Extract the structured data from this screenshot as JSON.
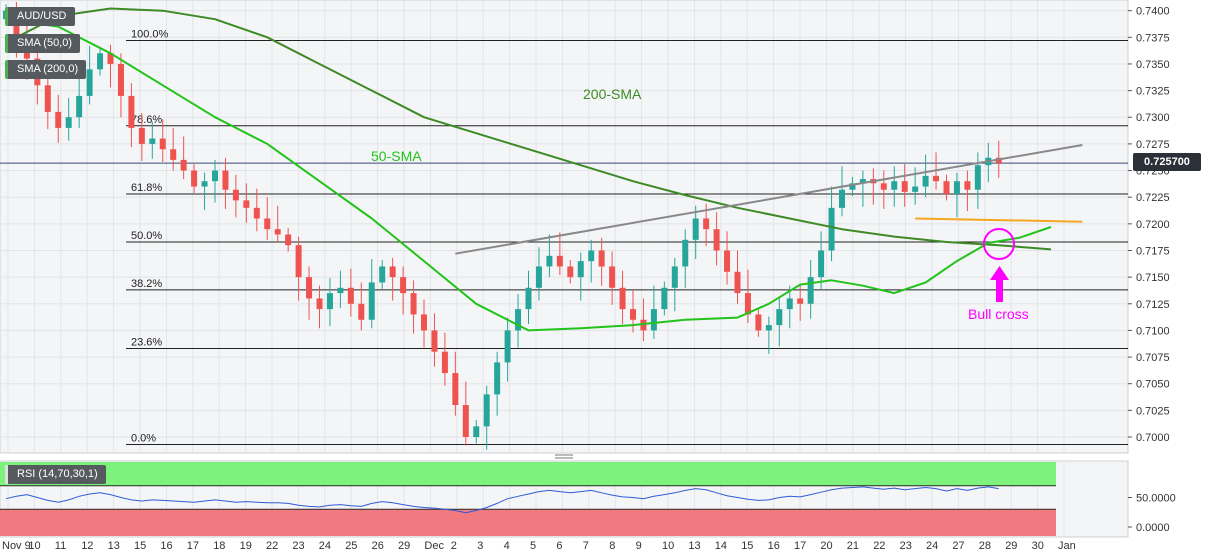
{
  "symbol": "AUD/USD",
  "indicators": [
    "SMA (50,0)",
    "SMA (200,0)"
  ],
  "rsi_label": "RSI (14,70,30,1)",
  "current_price_label": "0.725700",
  "colors": {
    "up_candle": "#26a69a",
    "down_candle": "#ef5350",
    "sma50": "#22c31a",
    "sma200": "#3d8b24",
    "trendline": "#888888",
    "support": "#f5a623",
    "annotation": "#ff00ff",
    "rsi_line": "#2f5bd8",
    "rsi_overbought": "#7df27d",
    "rsi_oversold": "#f07a80"
  },
  "annotations": {
    "sma200_label": "200-SMA",
    "sma50_label": "50-SMA",
    "bull_cross_label": "Bull cross"
  },
  "chart_data": {
    "type": "candlestick",
    "instrument": "AUD/USD",
    "ylim": [
      0.6985,
      0.741
    ],
    "y_ticks": [
      "0.7400",
      "0.7375",
      "0.7350",
      "0.7325",
      "0.7300",
      "0.7275",
      "0.7250",
      "0.7225",
      "0.7200",
      "0.7175",
      "0.7150",
      "0.7125",
      "0.7100",
      "0.7075",
      "0.7050",
      "0.7025",
      "0.7000"
    ],
    "x_ticks": [
      "Nov 9",
      "10",
      "11",
      "12",
      "13",
      "15",
      "16",
      "17",
      "18",
      "19",
      "22",
      "23",
      "24",
      "25",
      "26",
      "29",
      "Dec",
      "2",
      "3",
      "4",
      "5",
      "6",
      "7",
      "8",
      "9",
      "10",
      "13",
      "14",
      "15",
      "16",
      "17",
      "20",
      "21",
      "22",
      "23",
      "24",
      "27",
      "28",
      "29",
      "30",
      "Jan"
    ],
    "fibonacci": [
      {
        "label": "100.0%",
        "price": 0.7372
      },
      {
        "label": "78.6%",
        "price": 0.7292
      },
      {
        "label": "61.8%",
        "price": 0.7228
      },
      {
        "label": "50.0%",
        "price": 0.7183
      },
      {
        "label": "38.2%",
        "price": 0.7138
      },
      {
        "label": "23.6%",
        "price": 0.7083
      },
      {
        "label": "0.0%",
        "price": 0.6993
      }
    ],
    "current_price": 0.7257,
    "closes": [
      0.74,
      0.7378,
      0.7355,
      0.733,
      0.7305,
      0.729,
      0.73,
      0.732,
      0.7345,
      0.736,
      0.735,
      0.732,
      0.729,
      0.7275,
      0.728,
      0.727,
      0.726,
      0.725,
      0.7235,
      0.724,
      0.725,
      0.7232,
      0.7222,
      0.7215,
      0.7205,
      0.7195,
      0.719,
      0.718,
      0.715,
      0.713,
      0.712,
      0.7135,
      0.714,
      0.7125,
      0.711,
      0.7145,
      0.716,
      0.715,
      0.7135,
      0.7115,
      0.71,
      0.708,
      0.706,
      0.703,
      0.7,
      0.701,
      0.704,
      0.707,
      0.71,
      0.712,
      0.714,
      0.716,
      0.717,
      0.716,
      0.715,
      0.7165,
      0.7175,
      0.716,
      0.714,
      0.712,
      0.711,
      0.71,
      0.712,
      0.714,
      0.716,
      0.7185,
      0.7205,
      0.7195,
      0.7175,
      0.7155,
      0.7135,
      0.7115,
      0.71,
      0.7105,
      0.712,
      0.713,
      0.7125,
      0.715,
      0.7175,
      0.7215,
      0.7232,
      0.7238,
      0.7242,
      0.7238,
      0.7232,
      0.724,
      0.723,
      0.7235,
      0.7245,
      0.724,
      0.7228,
      0.724,
      0.7232,
      0.7255,
      0.7262,
      0.7257
    ],
    "sma50": [
      {
        "i": 0,
        "v": 0.7392
      },
      {
        "i": 5,
        "v": 0.7385
      },
      {
        "i": 10,
        "v": 0.736
      },
      {
        "i": 15,
        "v": 0.733
      },
      {
        "i": 20,
        "v": 0.73
      },
      {
        "i": 25,
        "v": 0.7275
      },
      {
        "i": 30,
        "v": 0.724
      },
      {
        "i": 35,
        "v": 0.7205
      },
      {
        "i": 40,
        "v": 0.7165
      },
      {
        "i": 45,
        "v": 0.7125
      },
      {
        "i": 50,
        "v": 0.71
      },
      {
        "i": 55,
        "v": 0.7102
      },
      {
        "i": 60,
        "v": 0.7105
      },
      {
        "i": 65,
        "v": 0.711
      },
      {
        "i": 70,
        "v": 0.7112
      },
      {
        "i": 73,
        "v": 0.7125
      },
      {
        "i": 76,
        "v": 0.7143
      },
      {
        "i": 79,
        "v": 0.7147
      },
      {
        "i": 82,
        "v": 0.7142
      },
      {
        "i": 85,
        "v": 0.7135
      },
      {
        "i": 88,
        "v": 0.7145
      },
      {
        "i": 91,
        "v": 0.7165
      },
      {
        "i": 94,
        "v": 0.7182
      },
      {
        "i": 97,
        "v": 0.7187
      },
      {
        "i": 100,
        "v": 0.7197
      }
    ],
    "sma200": [
      {
        "i": 0,
        "v": 0.737
      },
      {
        "i": 5,
        "v": 0.7395
      },
      {
        "i": 10,
        "v": 0.7402
      },
      {
        "i": 15,
        "v": 0.74
      },
      {
        "i": 20,
        "v": 0.7392
      },
      {
        "i": 25,
        "v": 0.7375
      },
      {
        "i": 30,
        "v": 0.735
      },
      {
        "i": 35,
        "v": 0.7325
      },
      {
        "i": 40,
        "v": 0.73
      },
      {
        "i": 45,
        "v": 0.7285
      },
      {
        "i": 50,
        "v": 0.727
      },
      {
        "i": 55,
        "v": 0.7255
      },
      {
        "i": 60,
        "v": 0.724
      },
      {
        "i": 65,
        "v": 0.7227
      },
      {
        "i": 70,
        "v": 0.7215
      },
      {
        "i": 75,
        "v": 0.7205
      },
      {
        "i": 80,
        "v": 0.7195
      },
      {
        "i": 85,
        "v": 0.7188
      },
      {
        "i": 90,
        "v": 0.7183
      },
      {
        "i": 95,
        "v": 0.718
      },
      {
        "i": 100,
        "v": 0.7176
      }
    ],
    "trendline": {
      "from": {
        "i": 43,
        "v": 0.7172
      },
      "to": {
        "i": 103,
        "v": 0.7274
      }
    },
    "support_line": {
      "from": {
        "i": 87,
        "v": 0.7205
      },
      "to": {
        "i": 103,
        "v": 0.7202
      }
    },
    "rsi": {
      "label": "RSI (14,70,30,1)",
      "ylim": [
        0,
        100
      ],
      "ticks": [
        "50.0000",
        "0.0000"
      ],
      "levels": [
        70,
        30
      ],
      "values": [
        48,
        52,
        55,
        50,
        45,
        42,
        46,
        52,
        56,
        58,
        55,
        50,
        46,
        44,
        46,
        45,
        44,
        43,
        42,
        44,
        46,
        44,
        42,
        43,
        42,
        41,
        41,
        40,
        37,
        35,
        34,
        37,
        38,
        36,
        35,
        40,
        43,
        41,
        38,
        35,
        33,
        32,
        30,
        28,
        24,
        28,
        33,
        40,
        48,
        52,
        56,
        60,
        62,
        60,
        58,
        60,
        62,
        58,
        54,
        51,
        50,
        48,
        52,
        55,
        58,
        62,
        65,
        63,
        58,
        53,
        50,
        47,
        45,
        46,
        50,
        52,
        51,
        55,
        59,
        63,
        66,
        67,
        68,
        66,
        64,
        66,
        63,
        65,
        67,
        65,
        61,
        65,
        62,
        66,
        68,
        65
      ]
    }
  }
}
